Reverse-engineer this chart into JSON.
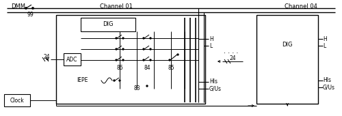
{
  "bg_color": "#ffffff",
  "line_color": "#000000",
  "dmm_label": "DMM",
  "clock_label": "Clock",
  "adc_label": "ADC",
  "iepe_label": "IEPE",
  "dig_label": "DIG",
  "ch01_label": "Channel 01",
  "ch04_label": "Channel 04",
  "label_24a": "24",
  "label_24b": "24",
  "label_99": "99",
  "label_83": "83",
  "label_84": "84",
  "label_85": "85",
  "label_86": "86",
  "label_H": "H",
  "label_L": "L",
  "label_HIs": "HIs",
  "label_GUs": "G/Us",
  "dots": ". . . ."
}
